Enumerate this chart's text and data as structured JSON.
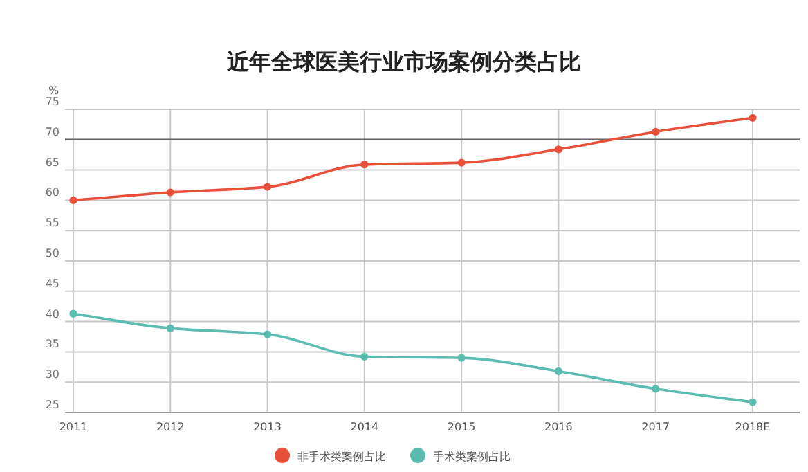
{
  "chart_data": {
    "type": "line",
    "title": "近年全球医美行业市场案例分类占比",
    "ylabel": "%",
    "categories": [
      "2011",
      "2012",
      "2013",
      "2014",
      "2015",
      "2016",
      "2017",
      "2018E"
    ],
    "series": [
      {
        "name": "非手术类案例占比",
        "color": "#e8503a",
        "values": [
          60.0,
          61.3,
          62.2,
          65.9,
          66.2,
          68.4,
          71.3,
          73.6
        ]
      },
      {
        "name": "手术类案例占比",
        "color": "#5bbcb0",
        "values": [
          41.3,
          38.9,
          37.9,
          34.2,
          34.0,
          31.8,
          28.9,
          26.7
        ]
      }
    ],
    "ylim": [
      25,
      75
    ],
    "yticks": [
      25,
      30,
      35,
      40,
      45,
      50,
      55,
      60,
      65,
      70,
      75
    ],
    "ref_lines": [
      {
        "axis": "y",
        "value": 70,
        "color": "#666666"
      }
    ],
    "grid": true,
    "legend": "bottom",
    "marker": "circle",
    "line_style": "solid"
  }
}
